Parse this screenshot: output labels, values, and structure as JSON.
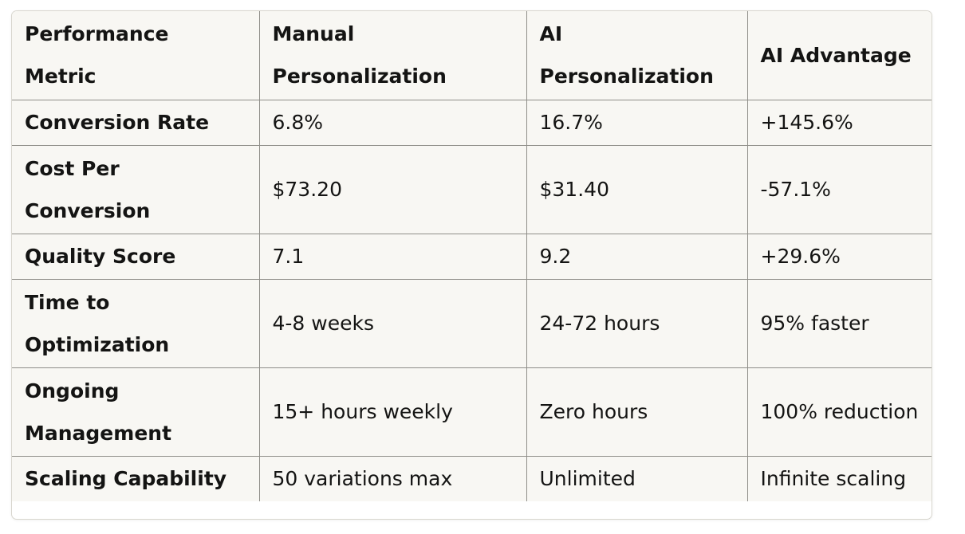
{
  "table": {
    "headers": [
      "Performance Metric",
      "Manual Personalization",
      "AI Personalization",
      "AI Advantage"
    ],
    "rows": [
      [
        "Conversion Rate",
        "6.8%",
        "16.7%",
        "+145.6%"
      ],
      [
        "Cost Per Conversion",
        "$73.20",
        "$31.40",
        "-57.1%"
      ],
      [
        "Quality Score",
        "7.1",
        "9.2",
        "+29.6%"
      ],
      [
        "Time to Optimization",
        "4-8 weeks",
        "24-72 hours",
        "95% faster"
      ],
      [
        "Ongoing Management",
        "15+ hours weekly",
        "Zero hours",
        "100% reduction"
      ],
      [
        "Scaling Capability",
        "50 variations max",
        "Unlimited",
        "Infinite scaling"
      ]
    ]
  }
}
